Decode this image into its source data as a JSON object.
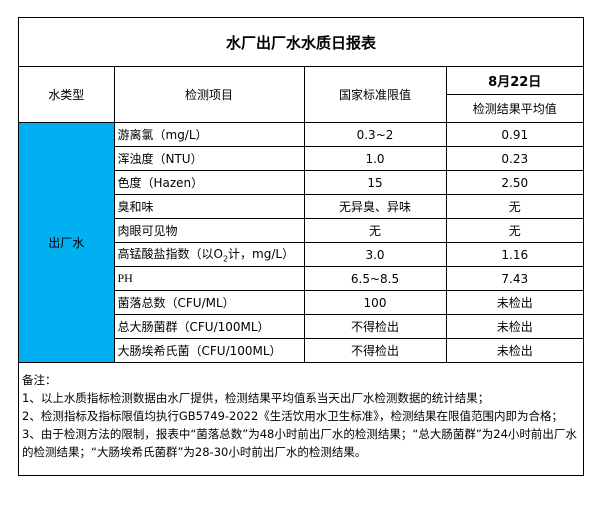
{
  "title": "水厂出厂水水质日报表",
  "headers": {
    "water_type": "水类型",
    "item": "检测项目",
    "standard": "国家标准限值",
    "date": "8月22日",
    "result": "检测结果平均值"
  },
  "water_type": "出厂水",
  "colors": {
    "water_type_fill": "#00B0F0"
  },
  "rows": [
    {
      "item": "游离氯（mg/L）",
      "standard": "0.3~2",
      "result": "0.91"
    },
    {
      "item": "浑浊度（NTU）",
      "standard": "1.0",
      "result": "0.23"
    },
    {
      "item": "色度（Hazen）",
      "standard": "15",
      "result": "2.50"
    },
    {
      "item": "臭和味",
      "standard": "无异臭、异味",
      "result": "无"
    },
    {
      "item": "肉眼可见物",
      "standard": "无",
      "result": "无"
    },
    {
      "item_pre": "高锰酸盐指数（以O",
      "item_sub": "2",
      "item_post": "计，mg/L）",
      "standard": "3.0",
      "result": "1.16"
    },
    {
      "item": "PH",
      "standard": "6.5~8.5",
      "result": "7.43"
    },
    {
      "item": "菌落总数（CFU/ML）",
      "standard": "100",
      "result": "未检出"
    },
    {
      "item": "总大肠菌群（CFU/100ML）",
      "standard": "不得检出",
      "result": "未检出"
    },
    {
      "item": "大肠埃希氏菌（CFU/100ML）",
      "standard": "不得检出",
      "result": "未检出"
    }
  ],
  "notes": [
    "备注：",
    "1、以上水质指标检测数据由水厂提供，检测结果平均值系当天出厂水检测数据的统计结果；",
    "2、检测指标及指标限值均执行GB5749-2022《生活饮用水卫生标准》，检测结果在限值范围内即为合格；",
    "3、由于检测方法的限制，报表中“菌落总数”为48小时前出厂水的检测结果；“总大肠菌群”为24小时前出厂水的检测结果；“大肠埃希氏菌群”为28-30小时前出厂水的检测结果。"
  ]
}
